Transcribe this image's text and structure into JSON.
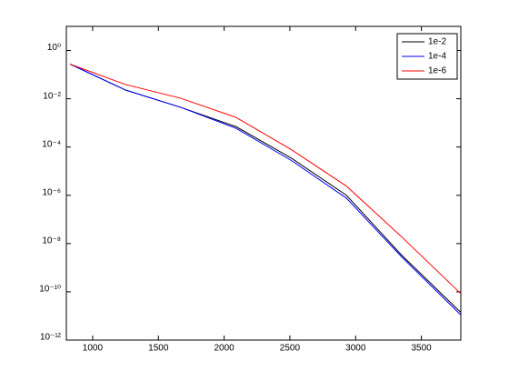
{
  "chart_data": {
    "type": "line",
    "log_y": true,
    "x": [
      830,
      1250,
      1670,
      2090,
      2510,
      2930,
      3350,
      3800
    ],
    "series": [
      {
        "name": "1e-2",
        "color": "#000000",
        "values": [
          0.27,
          0.023,
          0.0044,
          0.0007,
          3.5e-05,
          1e-06,
          3.3e-09,
          1.4e-11
        ]
      },
      {
        "name": "1e-4",
        "color": "#0000ff",
        "values": [
          0.27,
          0.023,
          0.0044,
          0.0006,
          2.8e-05,
          7.6e-07,
          2.8e-09,
          1.1e-11
        ]
      },
      {
        "name": "1e-6",
        "color": "#ff0000",
        "values": [
          0.27,
          0.039,
          0.0105,
          0.0017,
          7.9e-05,
          2.4e-06,
          1.9e-08,
          8.4e-11
        ]
      }
    ],
    "xlim": [
      800,
      3800
    ],
    "xticks": [
      1000,
      1500,
      2000,
      2500,
      3000,
      3500
    ],
    "ylim": [
      1e-12,
      10
    ],
    "yticks": [
      {
        "value": 1,
        "label": "10⁰"
      },
      {
        "value": 0.01,
        "label": "10⁻²"
      },
      {
        "value": 0.0001,
        "label": "10⁻⁴"
      },
      {
        "value": 1e-06,
        "label": "10⁻⁶"
      },
      {
        "value": 1e-08,
        "label": "10⁻⁸"
      },
      {
        "value": 1e-10,
        "label": "10⁻¹⁰"
      },
      {
        "value": 1e-12,
        "label": "10⁻¹²"
      }
    ],
    "legend": "top-right"
  }
}
